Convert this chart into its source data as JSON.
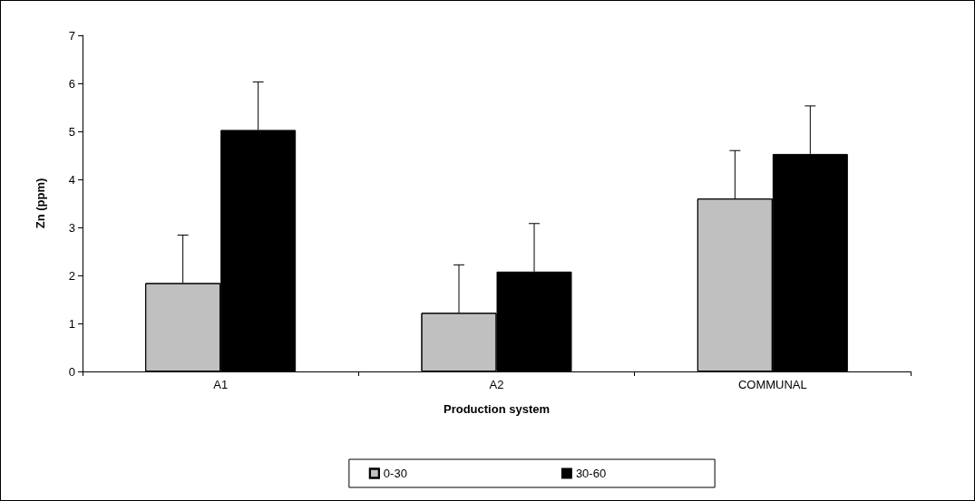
{
  "chart_data": {
    "type": "bar",
    "xlabel": "Production system",
    "ylabel": "Zn (ppm)",
    "categories": [
      "A1",
      "A2",
      "COMMUNAL"
    ],
    "series": [
      {
        "name": "0-30",
        "color": "#c0c0c0",
        "values": [
          1.84,
          1.22,
          3.6
        ],
        "errors": [
          [
            1.84,
            2.84
          ],
          [
            1.22,
            2.22
          ],
          [
            3.6,
            4.6
          ]
        ]
      },
      {
        "name": "30-60",
        "color": "#000000",
        "values": [
          5.03,
          2.08,
          4.53
        ],
        "errors": [
          [
            5.03,
            6.03
          ],
          [
            2.08,
            3.08
          ],
          [
            4.53,
            5.53
          ]
        ]
      }
    ],
    "ylim": [
      0,
      7
    ],
    "yticks": [
      0,
      1,
      2,
      3,
      4,
      5,
      6,
      7
    ],
    "grid": false,
    "legend": "bottom"
  }
}
